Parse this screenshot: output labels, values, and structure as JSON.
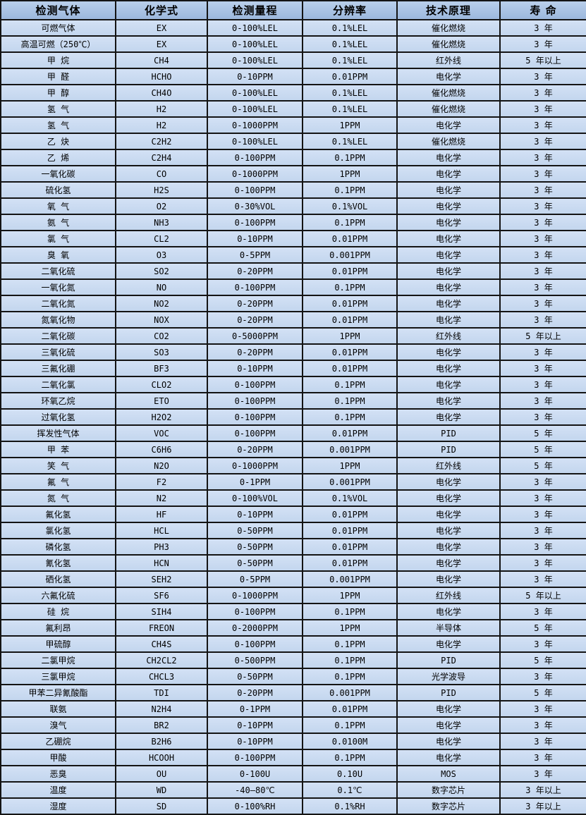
{
  "table": {
    "columns": [
      "检测气体",
      "化学式",
      "检测量程",
      "分辨率",
      "技术原理",
      "寿 命"
    ],
    "column_keys": [
      "gas",
      "formula",
      "range",
      "resolution",
      "principle",
      "lifespan"
    ],
    "colors": {
      "header_bg": "#a6bfe0",
      "row_bg": "#c6d9f1",
      "border": "#141414",
      "text": "#000000"
    },
    "rows": [
      [
        "可燃气体",
        "EX",
        "0-100%LEL",
        "0.1%LEL",
        "催化燃烧",
        "3 年"
      ],
      [
        "高温可燃（250℃）",
        "EX",
        "0-100%LEL",
        "0.1%LEL",
        "催化燃烧",
        "3 年"
      ],
      [
        "甲 烷",
        "CH4",
        "0-100%LEL",
        "0.1%LEL",
        "红外线",
        "5 年以上"
      ],
      [
        "甲 醛",
        "HCHO",
        "0-10PPM",
        "0.01PPM",
        "电化学",
        "3 年"
      ],
      [
        "甲 醇",
        "CH4O",
        "0-100%LEL",
        "0.1%LEL",
        "催化燃烧",
        "3 年"
      ],
      [
        "氢 气",
        "H2",
        "0-100%LEL",
        "0.1%LEL",
        "催化燃烧",
        "3 年"
      ],
      [
        "氢 气",
        "H2",
        "0-1000PPM",
        "1PPM",
        "电化学",
        "3 年"
      ],
      [
        "乙 炔",
        "C2H2",
        "0-100%LEL",
        "0.1%LEL",
        "催化燃烧",
        "3 年"
      ],
      [
        "乙 烯",
        "C2H4",
        "0-100PPM",
        "0.1PPM",
        "电化学",
        "3 年"
      ],
      [
        "一氧化碳",
        "CO",
        "0-1000PPM",
        "1PPM",
        "电化学",
        "3 年"
      ],
      [
        "硫化氢",
        "H2S",
        "0-100PPM",
        "0.1PPM",
        "电化学",
        "3 年"
      ],
      [
        "氧 气",
        "O2",
        "0-30%VOL",
        "0.1%VOL",
        "电化学",
        "3 年"
      ],
      [
        "氨 气",
        "NH3",
        "0-100PPM",
        "0.1PPM",
        "电化学",
        "3 年"
      ],
      [
        "氯 气",
        "CL2",
        "0-10PPM",
        "0.01PPM",
        "电化学",
        "3 年"
      ],
      [
        "臭 氧",
        "O3",
        "0-5PPM",
        "0.001PPM",
        "电化学",
        "3 年"
      ],
      [
        "二氧化硫",
        "SO2",
        "0-20PPM",
        "0.01PPM",
        "电化学",
        "3 年"
      ],
      [
        "一氧化氮",
        "NO",
        "0-100PPM",
        "0.1PPM",
        "电化学",
        "3 年"
      ],
      [
        "二氧化氮",
        "NO2",
        "0-20PPM",
        "0.01PPM",
        "电化学",
        "3 年"
      ],
      [
        "氮氧化物",
        "NOX",
        "0-20PPM",
        "0.01PPM",
        "电化学",
        "3 年"
      ],
      [
        "二氧化碳",
        "CO2",
        "0-5000PPM",
        "1PPM",
        "红外线",
        "5 年以上"
      ],
      [
        "三氧化硫",
        "SO3",
        "0-20PPM",
        "0.01PPM",
        "电化学",
        "3 年"
      ],
      [
        "三氟化硼",
        "BF3",
        "0-10PPM",
        "0.01PPM",
        "电化学",
        "3 年"
      ],
      [
        "二氧化氯",
        "CLO2",
        "0-100PPM",
        "0.1PPM",
        "电化学",
        "3 年"
      ],
      [
        "环氧乙烷",
        "ETO",
        "0-100PPM",
        "0.1PPM",
        "电化学",
        "3 年"
      ],
      [
        "过氧化氢",
        "H2O2",
        "0-100PPM",
        "0.1PPM",
        "电化学",
        "3 年"
      ],
      [
        "挥发性气体",
        "VOC",
        "0-100PPM",
        "0.01PPM",
        "PID",
        "5 年"
      ],
      [
        "甲 苯",
        "C6H6",
        "0-20PPM",
        "0.001PPM",
        "PID",
        "5 年"
      ],
      [
        "笑 气",
        "N2O",
        "0-1000PPM",
        "1PPM",
        "红外线",
        "5 年"
      ],
      [
        "氟 气",
        "F2",
        "0-1PPM",
        "0.001PPM",
        "电化学",
        "3 年"
      ],
      [
        "氮 气",
        "N2",
        "0-100%VOL",
        "0.1%VOL",
        "电化学",
        "3 年"
      ],
      [
        "氟化氢",
        "HF",
        "0-10PPM",
        "0.01PPM",
        "电化学",
        "3 年"
      ],
      [
        "氯化氢",
        "HCL",
        "0-50PPM",
        "0.01PPM",
        "电化学",
        "3 年"
      ],
      [
        "磷化氢",
        "PH3",
        "0-50PPM",
        "0.01PPM",
        "电化学",
        "3 年"
      ],
      [
        "氰化氢",
        "HCN",
        "0-50PPM",
        "0.01PPM",
        "电化学",
        "3 年"
      ],
      [
        "硒化氢",
        "SEH2",
        "0-5PPM",
        "0.001PPM",
        "电化学",
        "3 年"
      ],
      [
        "六氟化硫",
        "SF6",
        "0-1000PPM",
        "1PPM",
        "红外线",
        "5 年以上"
      ],
      [
        "硅 烷",
        "SIH4",
        "0-100PPM",
        "0.1PPM",
        "电化学",
        "3 年"
      ],
      [
        "氟利昂",
        "FREON",
        "0-2000PPM",
        "1PPM",
        "半导体",
        "5 年"
      ],
      [
        "甲硫醇",
        "CH4S",
        "0-100PPM",
        "0.1PPM",
        "电化学",
        "3 年"
      ],
      [
        "二氯甲烷",
        "CH2CL2",
        "0-500PPM",
        "0.1PPM",
        "PID",
        "5 年"
      ],
      [
        "三氯甲烷",
        "CHCL3",
        "0-50PPM",
        "0.1PPM",
        "光学波导",
        "3 年"
      ],
      [
        "甲苯二异氰酸酯",
        "TDI",
        "0-20PPM",
        "0.001PPM",
        "PID",
        "5 年"
      ],
      [
        "联氨",
        "N2H4",
        "0-1PPM",
        "0.01PPM",
        "电化学",
        "3 年"
      ],
      [
        "溴气",
        "BR2",
        "0-10PPM",
        "0.1PPM",
        "电化学",
        "3 年"
      ],
      [
        "乙硼烷",
        "B2H6",
        "0-10PPM",
        "0.0100M",
        "电化学",
        "3 年"
      ],
      [
        "甲酸",
        "HCOOH",
        "0-100PPM",
        "0.1PPM",
        "电化学",
        "3 年"
      ],
      [
        "恶臭",
        "OU",
        "0-100U",
        "0.10U",
        "MOS",
        "3 年"
      ],
      [
        "温度",
        "WD",
        "-40—80℃",
        "0.1℃",
        "数字芯片",
        "3 年以上"
      ],
      [
        "湿度",
        "SD",
        "0-100%RH",
        "0.1%RH",
        "数字芯片",
        "3 年以上"
      ]
    ]
  }
}
